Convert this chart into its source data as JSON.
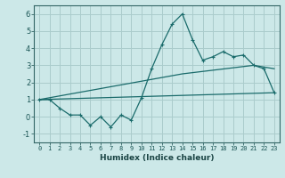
{
  "title": "",
  "xlabel": "Humidex (Indice chaleur)",
  "ylabel": "",
  "bg_color": "#cce8e8",
  "grid_color": "#aacccc",
  "line_color": "#1a6b6b",
  "xlim": [
    -0.5,
    23.5
  ],
  "ylim": [
    -1.5,
    6.5
  ],
  "yticks": [
    -1,
    0,
    1,
    2,
    3,
    4,
    5,
    6
  ],
  "xticks": [
    0,
    1,
    2,
    3,
    4,
    5,
    6,
    7,
    8,
    9,
    10,
    11,
    12,
    13,
    14,
    15,
    16,
    17,
    18,
    19,
    20,
    21,
    22,
    23
  ],
  "line1_x": [
    0,
    1,
    2,
    3,
    4,
    5,
    6,
    7,
    8,
    9,
    10,
    11,
    12,
    13,
    14,
    15,
    16,
    17,
    18,
    19,
    20,
    21,
    22,
    23
  ],
  "line1_y": [
    1.0,
    1.0,
    0.5,
    0.1,
    0.1,
    -0.5,
    0.0,
    -0.6,
    0.1,
    -0.2,
    1.1,
    2.8,
    4.2,
    5.4,
    6.0,
    4.5,
    3.3,
    3.5,
    3.8,
    3.5,
    3.6,
    3.0,
    2.8,
    1.4
  ],
  "line2_x": [
    0,
    23
  ],
  "line2_y": [
    1.0,
    1.4
  ],
  "line3_x": [
    0,
    14,
    21,
    23
  ],
  "line3_y": [
    1.0,
    2.5,
    3.0,
    2.8
  ],
  "marker": "+"
}
